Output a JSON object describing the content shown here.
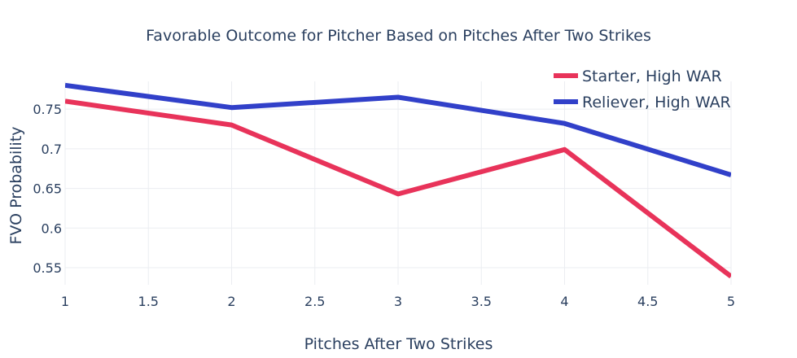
{
  "chart_data": {
    "type": "line",
    "title": "Favorable Outcome for Pitcher Based on Pitches After Two Strikes",
    "xlabel": "Pitches After Two Strikes",
    "ylabel": "FVO Probability",
    "x": [
      1,
      2,
      3,
      4,
      5
    ],
    "xlim": [
      1,
      5
    ],
    "ylim": [
      0.5285,
      0.785
    ],
    "x_ticks": [
      1,
      1.5,
      2,
      2.5,
      3,
      3.5,
      4,
      4.5,
      5
    ],
    "x_tick_labels": [
      "1",
      "1.5",
      "2",
      "2.5",
      "3",
      "3.5",
      "4",
      "4.5",
      "5"
    ],
    "y_ticks": [
      0.55,
      0.6,
      0.65,
      0.7,
      0.75
    ],
    "y_tick_labels": [
      "0.55",
      "0.6",
      "0.65",
      "0.7",
      "0.75"
    ],
    "grid": true,
    "legend_position": "top-right",
    "series": [
      {
        "name": "Starter, High WAR",
        "color": "#e8335a",
        "values": [
          0.76,
          0.73,
          0.643,
          0.699,
          0.539
        ]
      },
      {
        "name": "Reliever, High WAR",
        "color": "#3140c9",
        "values": [
          0.78,
          0.752,
          0.765,
          0.732,
          0.667
        ]
      }
    ]
  }
}
